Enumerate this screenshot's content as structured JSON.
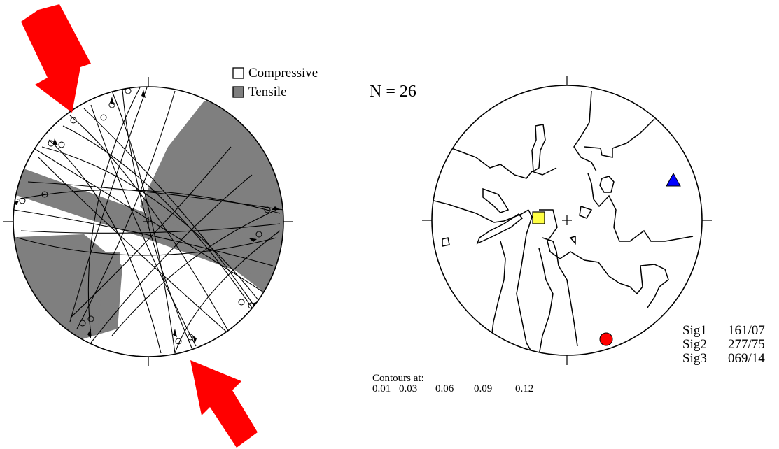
{
  "legend": {
    "compressive_label": "Compressive",
    "tensile_label": "Tensile"
  },
  "count_label": "N = 26",
  "contours": {
    "title": "Contours at:",
    "levels": [
      "0.01",
      "0.03",
      "0.06",
      "0.09",
      "0.12"
    ]
  },
  "stress_axes": [
    {
      "name": "Sig1",
      "value": "161/07"
    },
    {
      "name": "Sig2",
      "value": "277/75"
    },
    {
      "name": "Sig3",
      "value": "069/14"
    }
  ],
  "colors": {
    "tensile_fill": "#7f7f7f",
    "arrow": "#ff0000",
    "sig1_marker": "#ff0000",
    "sig2_marker": "#ffff44",
    "sig3_marker": "#0000ff"
  },
  "icons": {
    "sig1": "red-circle",
    "sig2": "yellow-square",
    "sig3": "blue-triangle",
    "compression_arrow": "red-arrow"
  }
}
